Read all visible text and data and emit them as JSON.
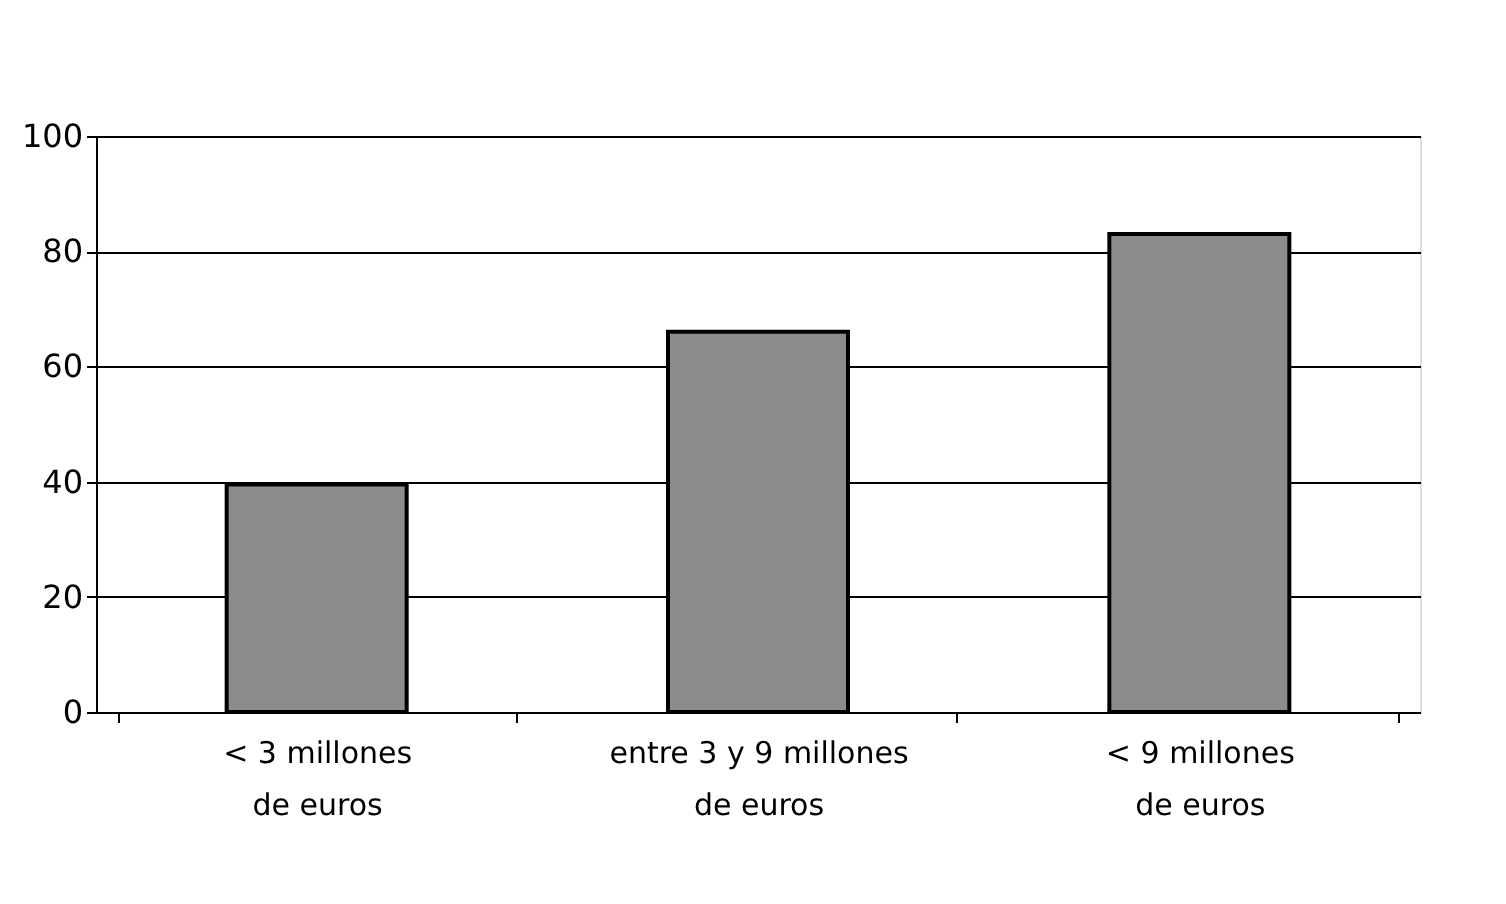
{
  "chart_data": {
    "type": "bar",
    "categories": [
      "< 3 millones\nde euros",
      "entre 3 y 9 millones\nde euros",
      "< 9 millones\nde euros"
    ],
    "values": [
      39.5,
      66,
      83
    ],
    "color": "#8c8c8c",
    "ylim": [
      0,
      100
    ],
    "yticks": [
      0,
      20,
      40,
      60,
      80,
      100
    ],
    "grid": "y"
  }
}
